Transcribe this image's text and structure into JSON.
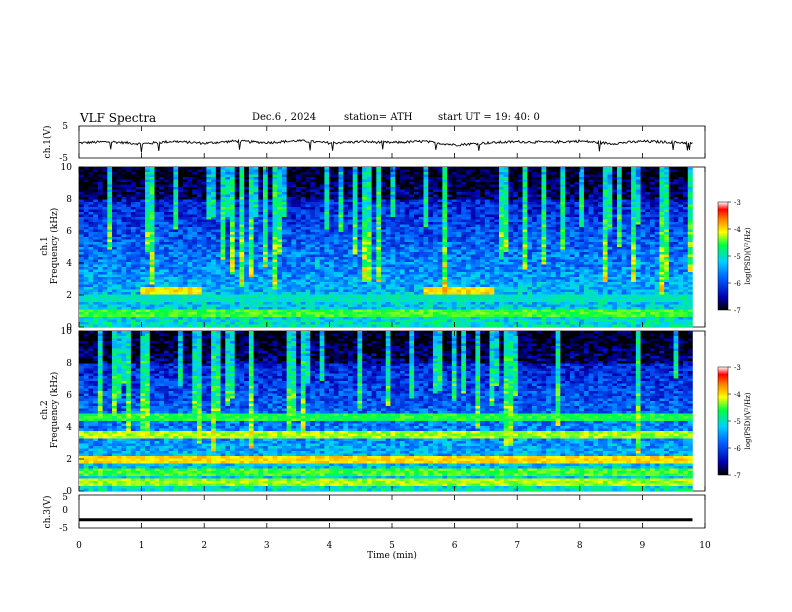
{
  "header": {
    "title": "VLF  Spectra",
    "date": "Dec.6  , 2024",
    "station": "station= ATH",
    "start": "start  UT  =   19: 40: 0"
  },
  "chart_data": [
    {
      "type": "line",
      "title": "",
      "ylabel": "ch.1(V)",
      "ylim": [
        -5,
        5
      ],
      "yticks": [
        "5",
        "-5"
      ],
      "xlim": [
        0,
        10
      ],
      "x": [
        0,
        0.5,
        1.0,
        1.5,
        2.0,
        2.5,
        3.0,
        3.5,
        4.0,
        4.5,
        5.0,
        5.5,
        6.0,
        6.5,
        7.0,
        7.5,
        8.0,
        8.5,
        9.0,
        9.5,
        9.8
      ],
      "y": [
        -0.3,
        0.1,
        -0.6,
        0.2,
        -0.4,
        0.3,
        -0.2,
        0.4,
        -0.3,
        0.1,
        -0.2,
        0.2,
        -0.9,
        -0.3,
        0.1,
        -0.1,
        0.3,
        -0.5,
        0.2,
        -0.1,
        -0.3
      ]
    },
    {
      "type": "heatmap",
      "title": "",
      "ylabel": "Frequency  (kHz)",
      "channel_label": "ch.1",
      "ylim": [
        0,
        10
      ],
      "yticks": [
        "0",
        "2",
        "4",
        "6",
        "8",
        "10"
      ],
      "xlim": [
        0,
        9.8
      ],
      "colorbar": {
        "label": "log(PSD)(V²/Hz)",
        "range": [
          -7,
          -3
        ],
        "ticks": [
          "-3",
          "-4",
          "-5",
          "-6",
          "-7"
        ]
      },
      "bands": [
        {
          "freq": 2.3,
          "x_start": 0.95,
          "x_end": 1.95,
          "level": -4.0
        },
        {
          "freq": 2.3,
          "x_start": 5.5,
          "x_end": 6.6,
          "level": -4.0
        },
        {
          "freq": 4.0,
          "x_start": 3.75,
          "x_end": 3.85,
          "level": -5.0
        },
        {
          "freq": 4.0,
          "x_start": 8.85,
          "x_end": 8.95,
          "level": -5.0
        },
        {
          "freq": 1.8,
          "x_start": 0,
          "x_end": 9.8,
          "level": -5.0
        },
        {
          "freq": 0.9,
          "x_start": 0,
          "x_end": 9.8,
          "level": -4.5
        }
      ]
    },
    {
      "type": "heatmap",
      "title": "",
      "ylabel": "Frequency  (kHz)",
      "channel_label": "ch.2",
      "ylim": [
        0,
        10
      ],
      "yticks": [
        "0",
        "2",
        "4",
        "6",
        "8",
        "10"
      ],
      "xlim": [
        0,
        9.8
      ],
      "colorbar": {
        "label": "log(PSD)(V²/Hz)",
        "range": [
          -7,
          -3
        ],
        "ticks": [
          "-3",
          "-4",
          "-5",
          "-6",
          "-7"
        ]
      },
      "bands": [
        {
          "freq": 2.0,
          "x_start": 0,
          "x_end": 9.8,
          "level": -4.0
        },
        {
          "freq": 3.5,
          "x_start": 0,
          "x_end": 9.8,
          "level": -4.3
        },
        {
          "freq": 4.6,
          "x_start": 0,
          "x_end": 9.8,
          "level": -4.6
        },
        {
          "freq": 1.2,
          "x_start": 0,
          "x_end": 9.8,
          "level": -4.5
        },
        {
          "freq": 0.6,
          "x_start": 0,
          "x_end": 9.8,
          "level": -4.3
        }
      ]
    },
    {
      "type": "line",
      "title": "",
      "ylabel": "ch.3(V)",
      "ylim": [
        -5,
        5
      ],
      "yticks": [
        "5",
        "0",
        "-5"
      ],
      "xlim": [
        0,
        10
      ],
      "x": [
        0,
        9.8
      ],
      "y": [
        -2.5,
        -2.5
      ]
    }
  ],
  "xaxis": {
    "label": "Time  (min)",
    "ticks": [
      "0",
      "1",
      "2",
      "3",
      "4",
      "5",
      "6",
      "7",
      "8",
      "9",
      "10"
    ]
  }
}
